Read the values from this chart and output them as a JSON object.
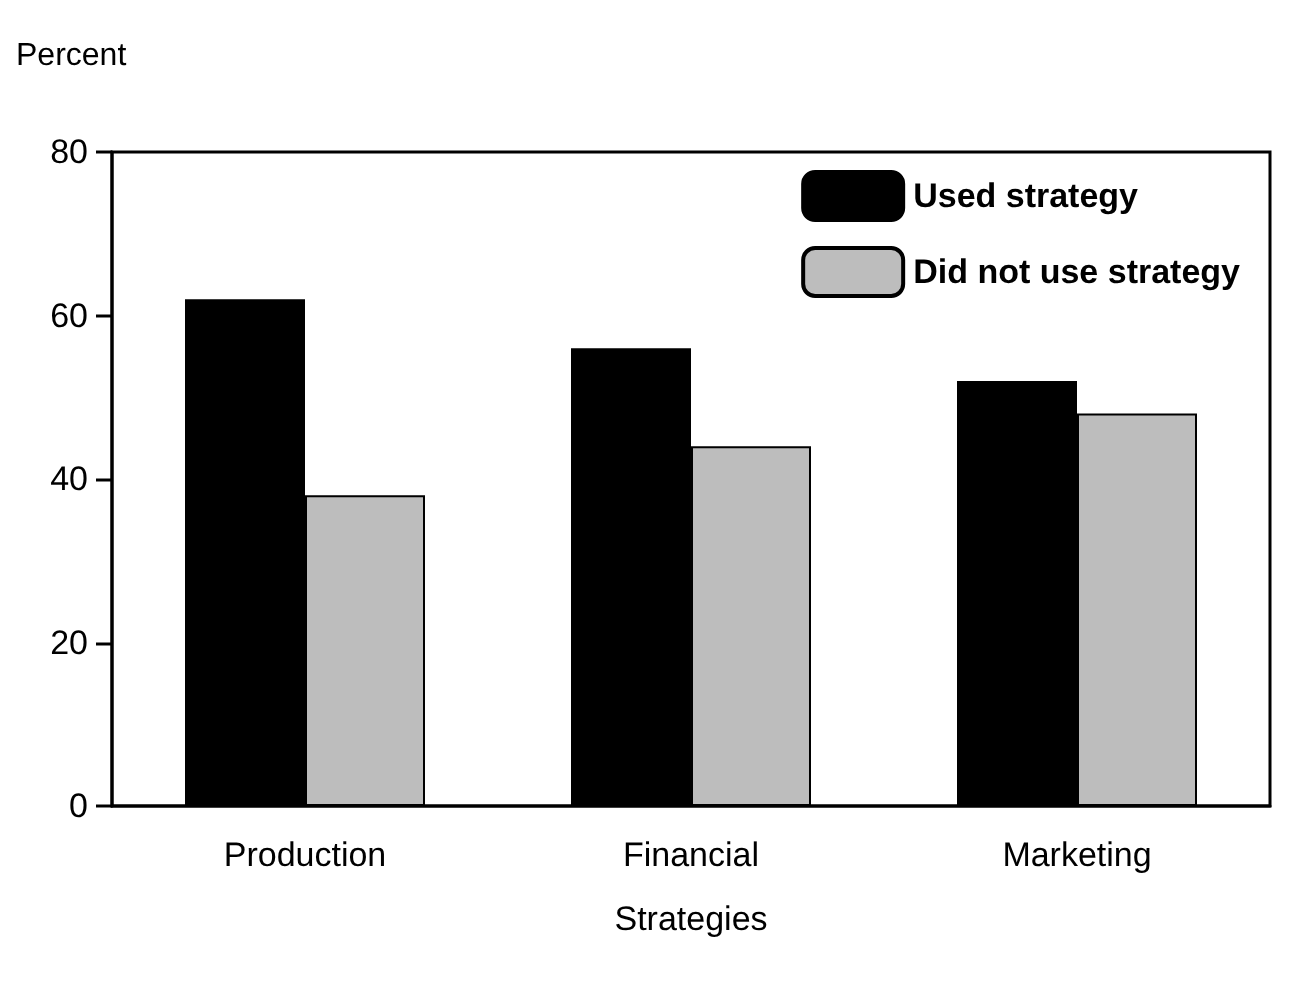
{
  "chart_data": {
    "type": "bar",
    "xlabel": "Strategies",
    "ylabel": "Percent",
    "categories": [
      "Production",
      "Financial",
      "Marketing"
    ],
    "series": [
      {
        "name": "Used strategy",
        "color": "#000000",
        "values": [
          62,
          56,
          52
        ]
      },
      {
        "name": "Did not use strategy",
        "color": "#bdbdbd",
        "values": [
          38,
          44,
          48
        ]
      }
    ],
    "ylim": [
      0,
      80
    ],
    "yticks": [
      0,
      20,
      40,
      60,
      80
    ],
    "grid": false,
    "legend": "top right"
  }
}
